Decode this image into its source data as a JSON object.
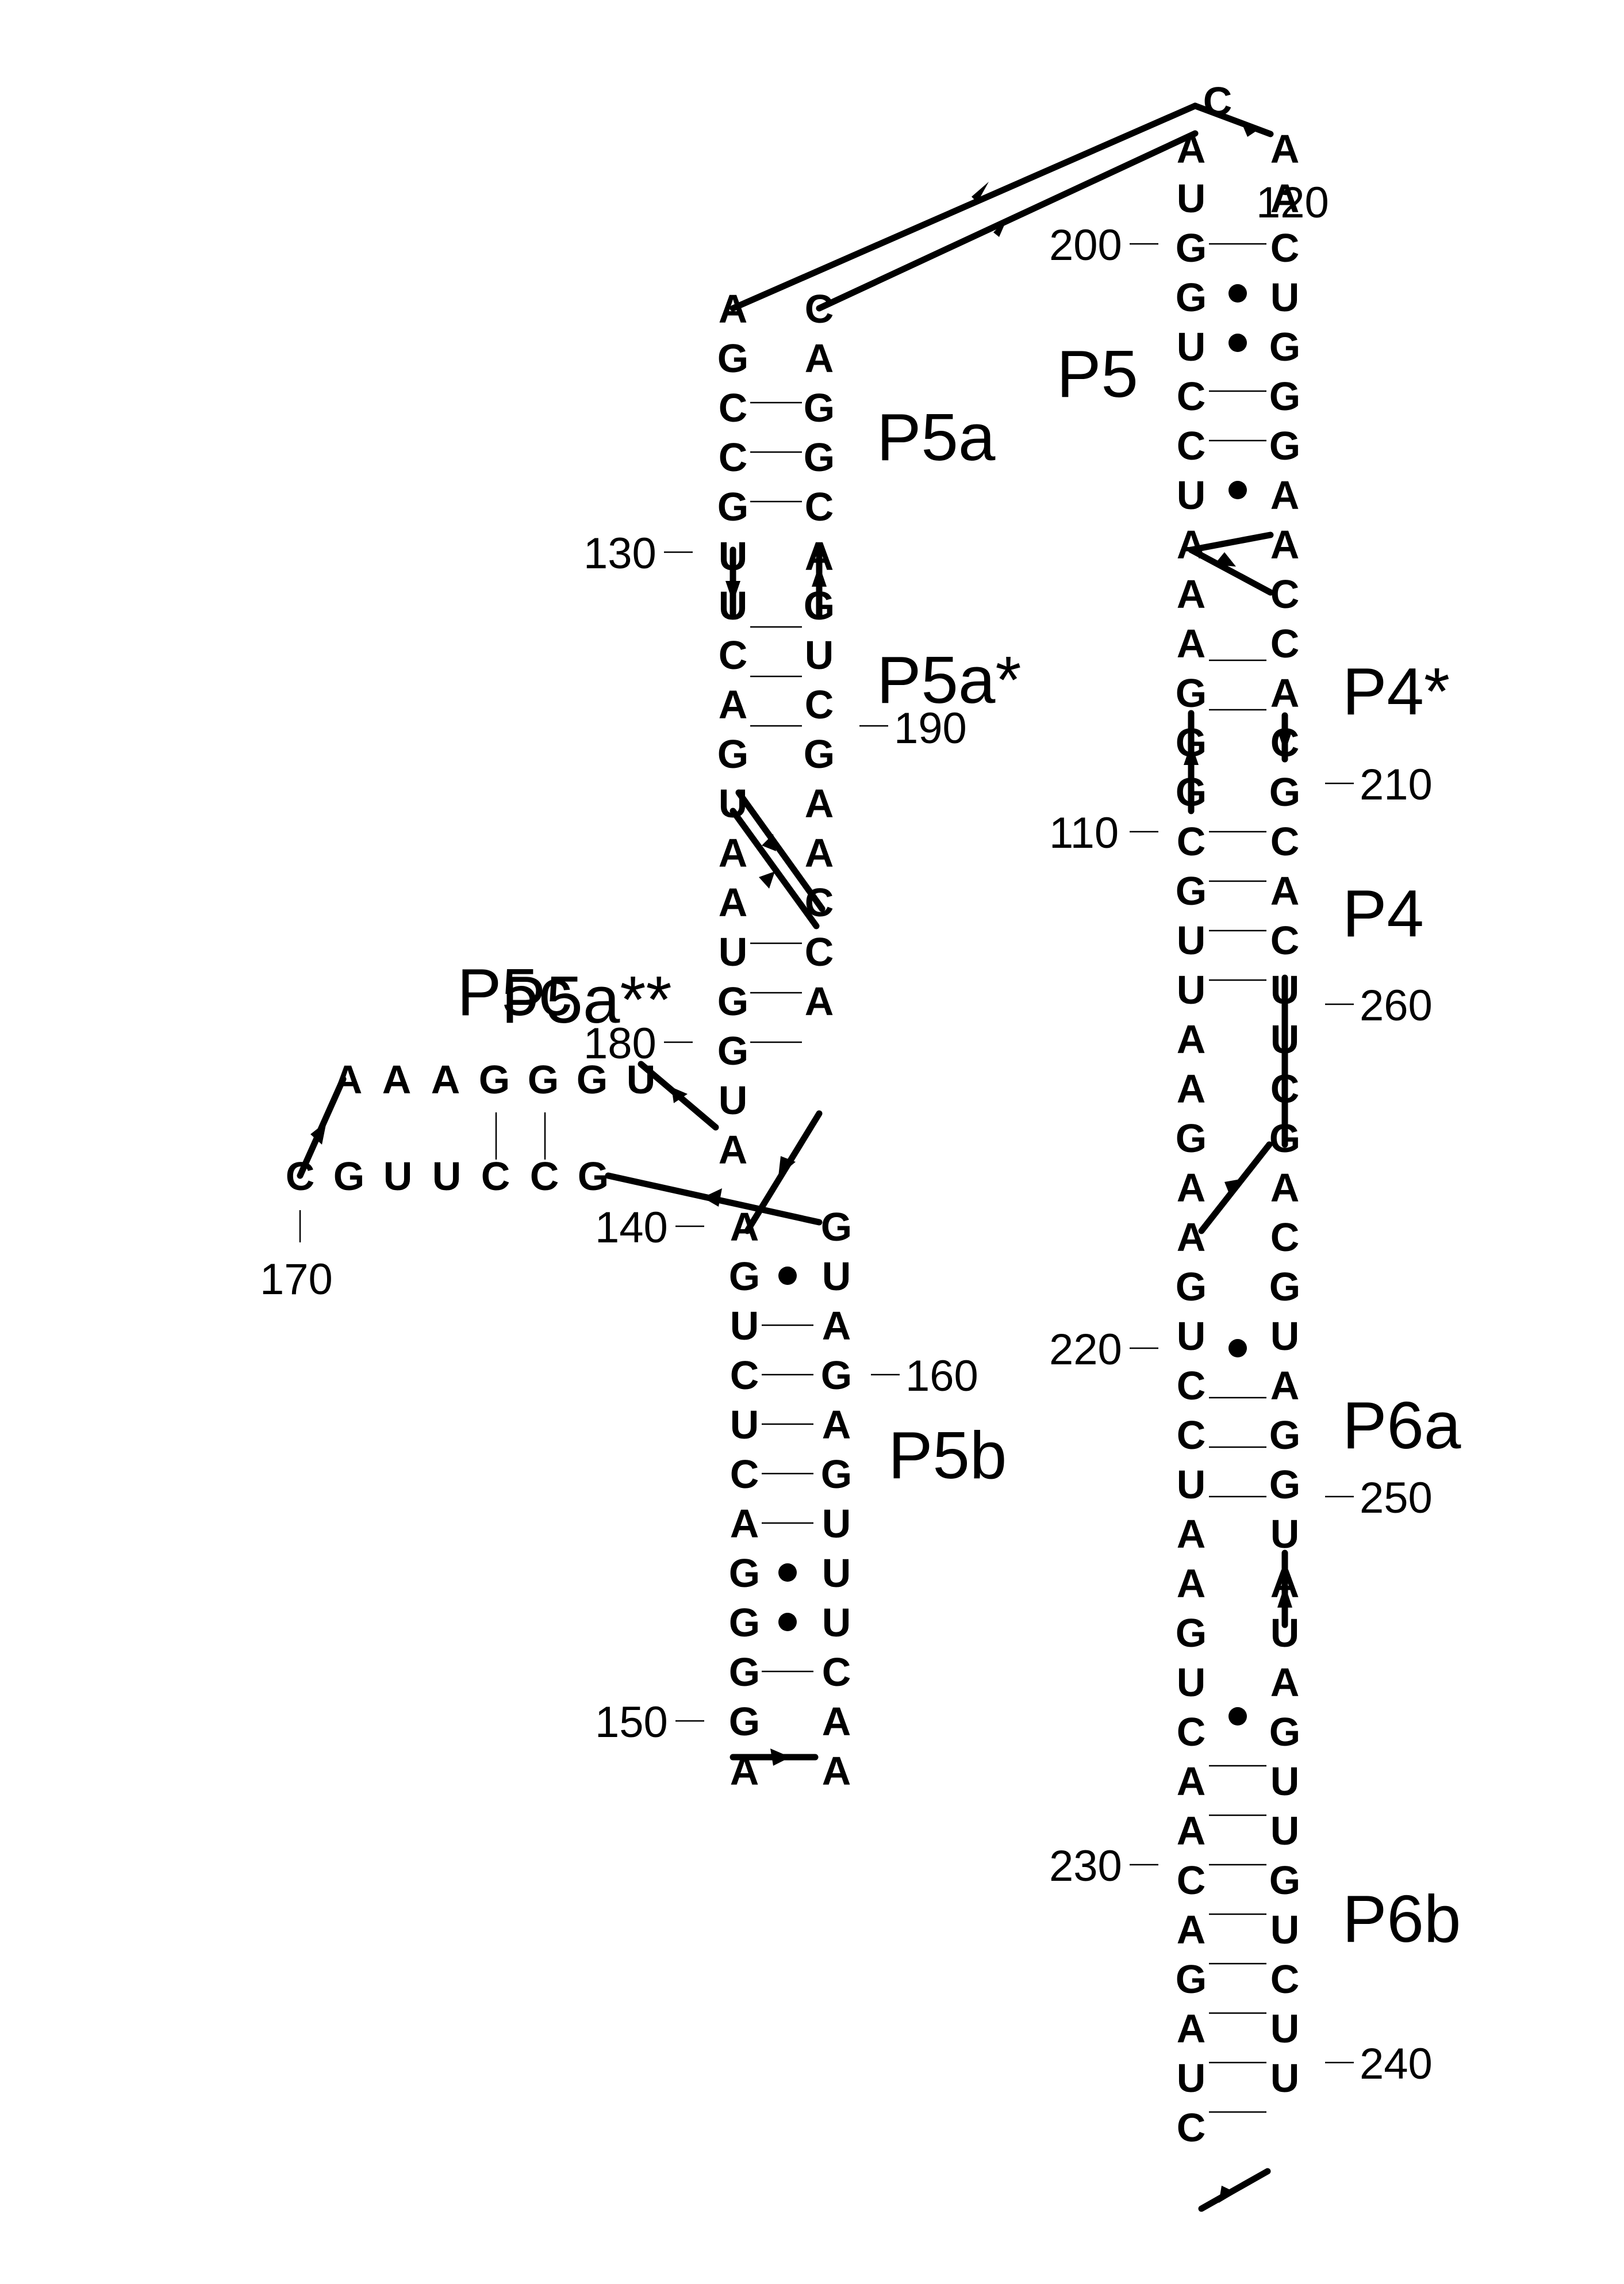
{
  "domain": "Diagram",
  "diagram": {
    "type": "rna-secondary-structure",
    "nucleotides": {
      "p5a_left": [
        "A",
        "G",
        "C",
        "C",
        "G",
        "U",
        "U",
        "C",
        "A",
        "G",
        "U",
        "A",
        "A",
        "U",
        "G",
        "G",
        "U",
        "A"
      ],
      "p5a_right": [
        "C",
        "A",
        "G",
        "G",
        "C",
        "A",
        "G",
        "U",
        "C",
        "G",
        "A",
        "A",
        "C",
        "C",
        "A"
      ],
      "p5b_left": [
        "A",
        "G",
        "U",
        "C",
        "U",
        "C",
        "A",
        "G",
        "G",
        "G",
        "G",
        "A"
      ],
      "p5b_right": [
        "G",
        "U",
        "A",
        "G",
        "A",
        "G",
        "U",
        "U",
        "U",
        "C",
        "A",
        "A"
      ],
      "p5c_top": [
        "A",
        "A",
        "A",
        "G",
        "G",
        "G",
        "U"
      ],
      "p5c_bottom": [
        "C",
        "G",
        "U",
        "U",
        "C",
        "C",
        "G"
      ],
      "p5_top": [
        "C"
      ],
      "p5_left": [
        "A",
        "U",
        "G",
        "G",
        "U",
        "C",
        "C",
        "U",
        "A",
        "A",
        "A",
        "G",
        "G",
        "G",
        "C",
        "G",
        "U",
        "U",
        "A",
        "A",
        "G",
        "A",
        "A",
        "G",
        "U",
        "C",
        "C",
        "U",
        "A",
        "A",
        "G",
        "U",
        "C",
        "A",
        "A",
        "C",
        "A",
        "G",
        "A",
        "U",
        "C"
      ],
      "p5_right": [
        "A",
        "A",
        "C",
        "U",
        "G",
        "G",
        "G",
        "A",
        "A",
        "C",
        "C",
        "A",
        "C",
        "G",
        "C",
        "A",
        "C",
        "U",
        "U",
        "C",
        "G",
        "A",
        "C",
        "G",
        "U",
        "A",
        "G",
        "G",
        "U",
        "A",
        "U",
        "A",
        "G",
        "U",
        "U",
        "G",
        "U",
        "C",
        "U",
        "U"
      ]
    },
    "position_labels": [
      "130",
      "190",
      "180",
      "140",
      "170",
      "160",
      "150",
      "200",
      "120",
      "210",
      "110",
      "260",
      "220",
      "250",
      "230",
      "240"
    ],
    "helix_labels": [
      "P5a",
      "P5a*",
      "P5c",
      "P5a**",
      "P5b",
      "P5",
      "P4*",
      "P4",
      "P6a",
      "P6b"
    ]
  }
}
